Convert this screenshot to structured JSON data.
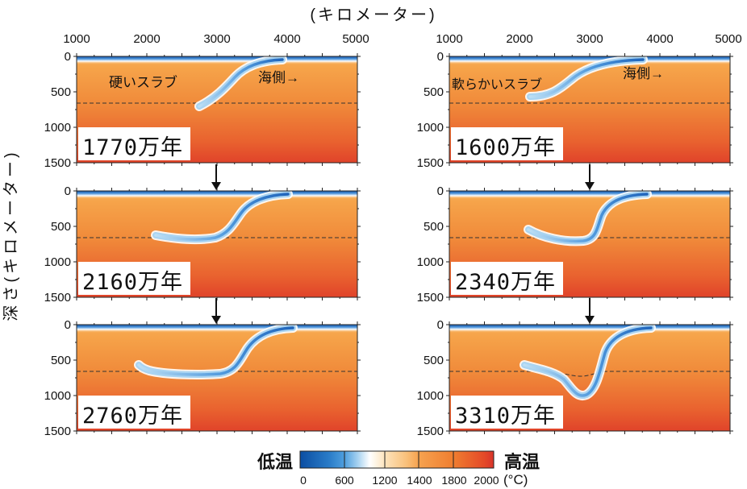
{
  "figure": {
    "x_axis_title": "(キロメーター)",
    "y_axis_title": "深さ(キロメーター)",
    "x_ticks": [
      "1000",
      "2000",
      "3000",
      "4000",
      "5000"
    ],
    "y_ticks": [
      "0",
      "500",
      "1000",
      "1500"
    ]
  },
  "left_column": {
    "slab_label": "硬いスラブ",
    "direction_label": "海側→",
    "snapshots": [
      {
        "time": "1770万年"
      },
      {
        "time": "2160万年"
      },
      {
        "time": "2760万年"
      }
    ]
  },
  "right_column": {
    "slab_label": "軟らかいスラブ",
    "direction_label": "海側→",
    "snapshots": [
      {
        "time": "1600万年"
      },
      {
        "time": "2340万年"
      },
      {
        "time": "3310万年"
      }
    ]
  },
  "colorbar": {
    "low_label": "低温",
    "high_label": "高温",
    "ticks": [
      "0",
      "600",
      "1200",
      "1400",
      "1800",
      "2000"
    ],
    "unit": "(°C)"
  }
}
